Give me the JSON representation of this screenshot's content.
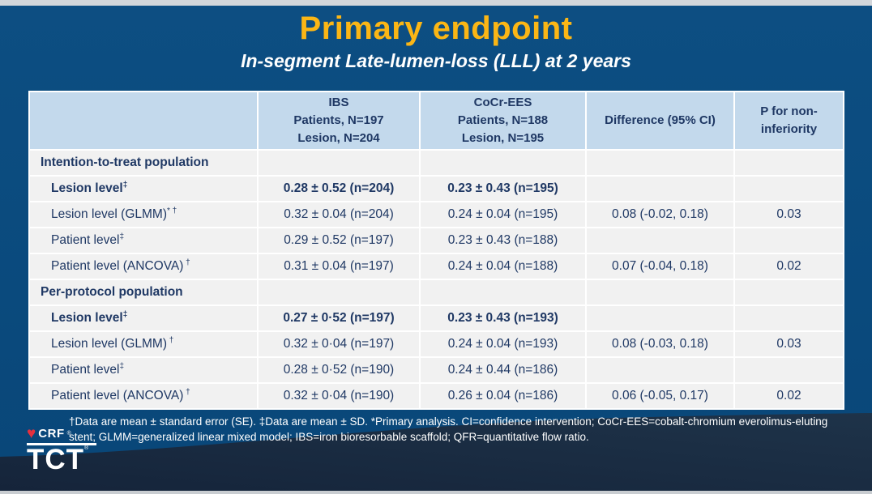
{
  "slide": {
    "title": "Primary endpoint",
    "subtitle": "In-segment Late-lumen-loss (LLL) at 2 years"
  },
  "table": {
    "headers": {
      "col1": "",
      "col2": [
        "IBS",
        "Patients, N=197",
        "Lesion, N=204"
      ],
      "col3": [
        "CoCr-EES",
        "Patients, N=188",
        "Lesion, N=195"
      ],
      "col4": "Difference (95% CI)",
      "col5": "P for non-inferiority"
    },
    "rows": [
      {
        "type": "section",
        "label": "Intention-to-treat population",
        "sup": "",
        "ibs": "",
        "cocr": "",
        "diff": "",
        "p": ""
      },
      {
        "type": "emphasis",
        "label": "Lesion level",
        "sup": "‡",
        "ibs": "0.28 ± 0.52 (n=204)",
        "cocr": "0.23 ± 0.43 (n=195)",
        "diff": "",
        "p": ""
      },
      {
        "type": "data",
        "label": "Lesion level (GLMM)",
        "sup": "* †",
        "ibs": "0.32 ± 0.04 (n=204)",
        "cocr": "0.24 ± 0.04 (n=195)",
        "diff": "0.08 (-0.02, 0.18)",
        "p": "0.03"
      },
      {
        "type": "data",
        "label": "Patient level",
        "sup": "‡",
        "ibs": "0.29 ± 0.52 (n=197)",
        "cocr": "0.23 ± 0.43 (n=188)",
        "diff": "",
        "p": ""
      },
      {
        "type": "data",
        "label": "Patient level (ANCOVA)",
        "sup": " †",
        "ibs": "0.31 ± 0.04 (n=197)",
        "cocr": "0.24 ± 0.04 (n=188)",
        "diff": "0.07 (-0.04, 0.18)",
        "p": "0.02"
      },
      {
        "type": "section",
        "label": "Per-protocol population",
        "sup": "",
        "ibs": "",
        "cocr": "",
        "diff": "",
        "p": ""
      },
      {
        "type": "emphasis",
        "label": "Lesion level",
        "sup": "‡",
        "ibs": "0.27 ± 0·52 (n=197)",
        "cocr": "0.23 ± 0.43 (n=193)",
        "diff": "",
        "p": ""
      },
      {
        "type": "data",
        "label": "Lesion level (GLMM)",
        "sup": " †",
        "ibs": "0.32 ± 0·04 (n=197)",
        "cocr": "0.24 ± 0.04 (n=193)",
        "diff": "0.08 (-0.03, 0.18)",
        "p": "0.03"
      },
      {
        "type": "data",
        "label": "Patient level",
        "sup": "‡",
        "ibs": "0.28 ± 0·52 (n=190)",
        "cocr": "0.24 ± 0.44 (n=186)",
        "diff": "",
        "p": ""
      },
      {
        "type": "data",
        "label": "Patient level (ANCOVA)",
        "sup": " †",
        "ibs": "0.32 ± 0·04 (n=190)",
        "cocr": "0.26 ± 0.04 (n=186)",
        "diff": "0.06 (-0.05, 0.17)",
        "p": "0.02"
      }
    ]
  },
  "footnote": "†Data are mean ± standard error (SE). ‡Data are mean ± SD. *Primary analysis. CI=confidence intervention; CoCr-EES=cobalt-chromium everolimus-eluting stent; GLMM=generalized linear mixed model; IBS=iron bioresorbable scaffold; QFR=quantitative flow ratio.",
  "logo": {
    "heart_icon": "♥",
    "crf": "CRF",
    "crf_reg": "®",
    "tct": "TCT",
    "tct_reg": "®"
  },
  "colors": {
    "background_navy": "#0A4A7D",
    "wave_dark_navy": "#1B2C42",
    "header_blue": "#C3D9EC",
    "row_gray": "#F1F1F1",
    "text_navy": "#1F3864",
    "title_gold": "#FBB615",
    "heart_red": "#E5303E"
  }
}
